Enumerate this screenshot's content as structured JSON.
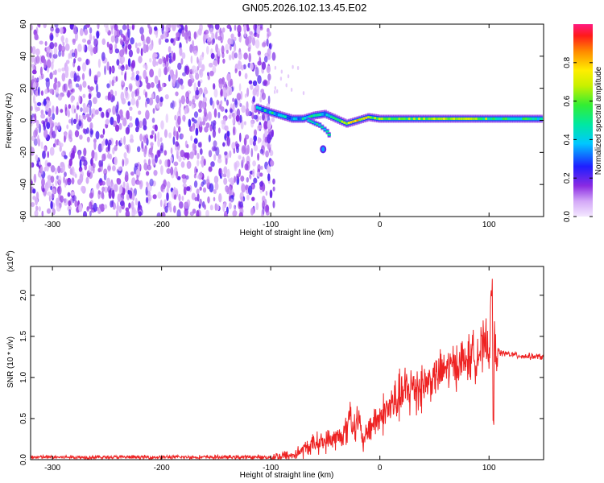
{
  "title": "GN05.2026.102.13.45.E02",
  "chart_data": [
    {
      "type": "heatmap",
      "xlabel": "Height of straight line (km)",
      "ylabel": "Frequency (Hz)",
      "xlim": [
        -320,
        150
      ],
      "ylim": [
        -60,
        60
      ],
      "x_ticks": [
        -300,
        -200,
        -100,
        0,
        100
      ],
      "y_ticks": [
        -60,
        -40,
        -20,
        0,
        20,
        40,
        60
      ],
      "colorbar": {
        "label": "Normalized spectral amplitude",
        "range": [
          0,
          1
        ],
        "ticks": [
          0.0,
          0.2,
          0.4,
          0.6,
          0.8
        ],
        "tick_labels": [
          "0.0",
          "0.2",
          "0.4",
          "0.6",
          "0.8"
        ]
      },
      "noise_region_x": [
        -320,
        -97
      ],
      "signal_track": [
        {
          "x": -112,
          "freq": 8,
          "amp": 0.35
        },
        {
          "x": -100,
          "freq": 5,
          "amp": 0.45
        },
        {
          "x": -90,
          "freq": 3,
          "amp": 0.4
        },
        {
          "x": -80,
          "freq": 1,
          "amp": 0.35
        },
        {
          "x": -70,
          "freq": 1,
          "amp": 0.4
        },
        {
          "x": -60,
          "freq": 3,
          "amp": 0.45
        },
        {
          "x": -50,
          "freq": 4,
          "amp": 0.4
        },
        {
          "x": -40,
          "freq": 1,
          "amp": 0.45
        },
        {
          "x": -30,
          "freq": -2,
          "amp": 0.7
        },
        {
          "x": -20,
          "freq": 0,
          "amp": 0.75
        },
        {
          "x": -10,
          "freq": 2,
          "amp": 0.7
        },
        {
          "x": 0,
          "freq": 1,
          "amp": 0.6
        },
        {
          "x": 25,
          "freq": 1,
          "amp": 0.6
        },
        {
          "x": 50,
          "freq": 1,
          "amp": 0.65
        },
        {
          "x": 75,
          "freq": 1,
          "amp": 0.65
        },
        {
          "x": 100,
          "freq": 1,
          "amp": 0.55
        },
        {
          "x": 125,
          "freq": 1,
          "amp": 0.5
        },
        {
          "x": 150,
          "freq": 1,
          "amp": 0.45
        }
      ],
      "side_branch": [
        {
          "x": -65,
          "freq": 0,
          "amp": 0.4
        },
        {
          "x": -55,
          "freq": -3,
          "amp": 0.4
        },
        {
          "x": -48,
          "freq": -7,
          "amp": 0.4
        },
        {
          "x": -45,
          "freq": -11,
          "amp": 0.4
        }
      ],
      "isolated_blob": {
        "x": -52,
        "freq": -18,
        "amp": 0.35
      }
    },
    {
      "type": "line",
      "xlabel": "Height of straight line (km)",
      "ylabel": "SNR (10 * v/v)",
      "y_multiplier_label": "(x10",
      "y_multiplier_exp": "4",
      "y_multiplier_close": ")",
      "xlim": [
        -320,
        150
      ],
      "ylim": [
        0,
        2.35
      ],
      "x_ticks": [
        -300,
        -200,
        -100,
        0,
        100
      ],
      "y_ticks": [
        0.0,
        0.5,
        1.0,
        1.5,
        2.0
      ],
      "y_tick_labels": [
        "0.0",
        "0.5",
        "1.0",
        "1.5",
        "2.0"
      ],
      "series": [
        {
          "color": "#ee2222",
          "x": [
            -320,
            -250,
            -150,
            -100,
            -80,
            -70,
            -60,
            -50,
            -45,
            -40,
            -30,
            -25,
            -20,
            -15,
            -10,
            0,
            10,
            20,
            30,
            40,
            50,
            60,
            70,
            80,
            90,
            95,
            100,
            103,
            105,
            110,
            120,
            130,
            150
          ],
          "y": [
            0.03,
            0.03,
            0.03,
            0.03,
            0.05,
            0.12,
            0.2,
            0.22,
            0.25,
            0.25,
            0.35,
            0.42,
            0.5,
            0.18,
            0.4,
            0.52,
            0.65,
            0.78,
            0.88,
            0.92,
            1.0,
            1.1,
            1.16,
            1.22,
            1.3,
            1.35,
            1.4,
            1.55,
            1.38,
            1.3,
            1.28,
            1.26,
            1.25
          ]
        }
      ]
    }
  ]
}
